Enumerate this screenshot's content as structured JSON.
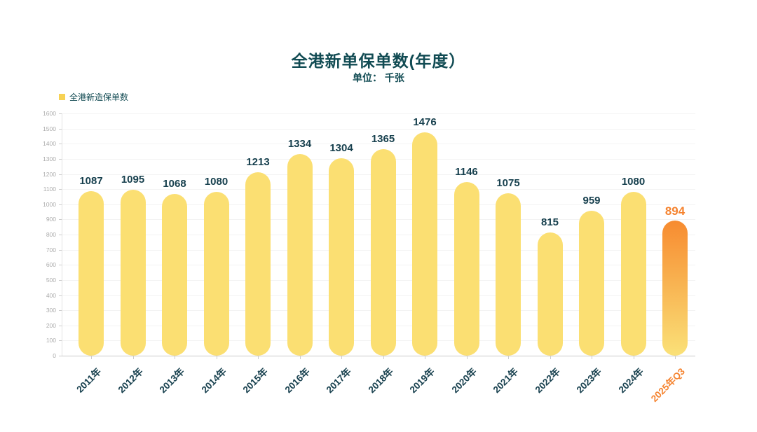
{
  "header": {
    "title": "全港新单保单数(年度）",
    "subtitle": "单位： 千张"
  },
  "legend": {
    "label": "全港新造保单数",
    "swatch_color": "#F7D254"
  },
  "colors": {
    "title_text": "#114B53",
    "subtitle_text": "#114B53",
    "legend_text": "#134B53",
    "value_label": "#17404E",
    "x_label": "#17404E",
    "highlight_text": "#F5832F",
    "bar_fill": "#FBDF72",
    "highlight_gradient_top": "#F78B30",
    "highlight_gradient_bottom": "#FAE178",
    "gridline": "#F3F3F3",
    "y_axis_line": "#E3E3E3",
    "baseline": "#C9C9C9",
    "tick_mark": "#CCCCCC",
    "ytick_text": "#ACACAC"
  },
  "chart_data": {
    "type": "bar",
    "title": "全港新单保单数(年度）",
    "subtitle": "单位： 千张",
    "legend_entries": [
      "全港新造保单数"
    ],
    "legend_position": "top-left",
    "categories": [
      "2011年",
      "2012年",
      "2013年",
      "2014年",
      "2015年",
      "2016年",
      "2017年",
      "2018年",
      "2019年",
      "2020年",
      "2021年",
      "2022年",
      "2023年",
      "2024年",
      "2025年Q3"
    ],
    "values": [
      1087,
      1095,
      1068,
      1080,
      1213,
      1334,
      1304,
      1365,
      1476,
      1146,
      1075,
      815,
      959,
      1080,
      894
    ],
    "highlight_index": 14,
    "xlabel": "",
    "ylabel": "",
    "ylim": [
      0,
      1600
    ],
    "ytick_step": 100,
    "grid": true,
    "x_label_rotation": -45
  }
}
